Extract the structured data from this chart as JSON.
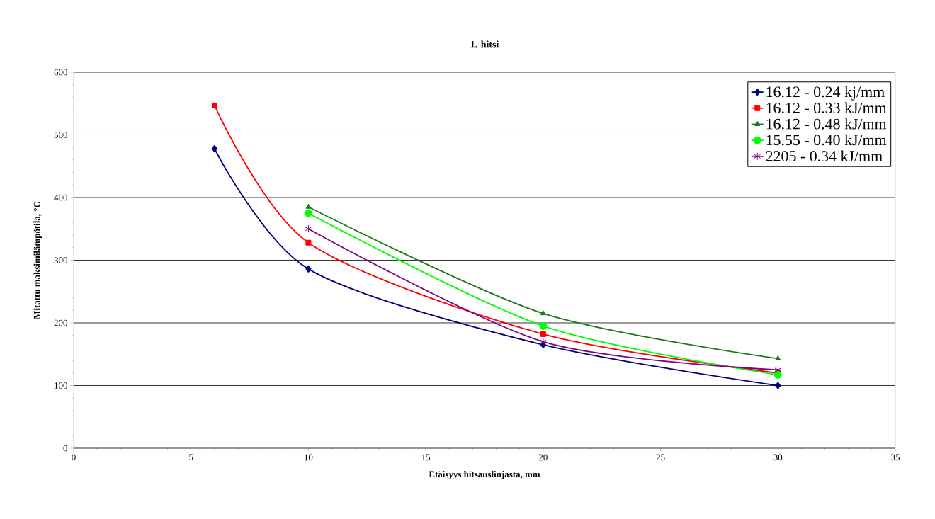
{
  "chart_data": {
    "type": "line",
    "title": "1. hitsi",
    "xlabel": "Etäisyys hitsauslinjasta, mm",
    "ylabel": "Mitattu maksimilämpötila, °C",
    "xlim": [
      0,
      35
    ],
    "xticks": [
      0,
      5,
      10,
      15,
      20,
      25,
      30,
      35
    ],
    "ylim": [
      0,
      600
    ],
    "yticks": [
      0,
      100,
      200,
      300,
      400,
      500,
      600
    ],
    "grid": "y",
    "legend": "top right",
    "series": [
      {
        "name": "16.12 - 0.24 kj/mm",
        "color": "#000080",
        "marker": "diamond",
        "x": [
          6,
          10,
          20,
          30
        ],
        "values": [
          478,
          286,
          165,
          100
        ]
      },
      {
        "name": "16.12 - 0.33 kJ/mm",
        "color": "#ff0000",
        "marker": "square",
        "x": [
          6,
          10,
          20,
          30
        ],
        "values": [
          547,
          328,
          182,
          120
        ]
      },
      {
        "name": "16.12 - 0.48 kJ/mm",
        "color": "#1a7a1a",
        "marker": "triangle",
        "x": [
          10,
          20,
          30
        ],
        "values": [
          385,
          215,
          143
        ]
      },
      {
        "name": "15.55 - 0.40 kJ/mm",
        "color": "#00ff00",
        "marker": "circle",
        "x": [
          10,
          20,
          30
        ],
        "values": [
          375,
          195,
          117
        ]
      },
      {
        "name": "2205 - 0.34 kJ/mm",
        "color": "#800080",
        "marker": "cross",
        "x": [
          10,
          20,
          30
        ],
        "values": [
          350,
          170,
          125
        ]
      }
    ]
  }
}
